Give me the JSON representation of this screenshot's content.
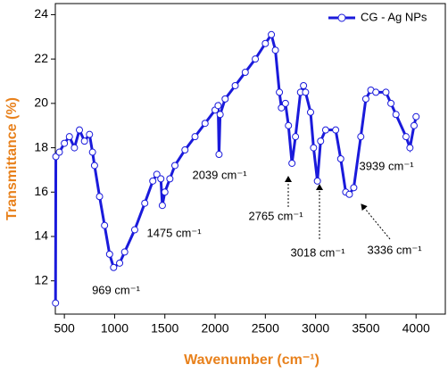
{
  "chart_data": {
    "type": "line",
    "x_label": "Wavenumber (cm⁻¹)",
    "y_label": "Transmittance (%)",
    "xlim": [
      410,
      4300
    ],
    "ylim": [
      10.5,
      24.5
    ],
    "xticks": [
      500,
      1000,
      1500,
      2000,
      2500,
      3000,
      3500,
      4000
    ],
    "yticks": [
      12,
      14,
      16,
      18,
      20,
      22,
      24
    ],
    "legend": "top-right",
    "x": [
      412,
      415,
      450,
      500,
      550,
      600,
      650,
      700,
      750,
      780,
      800,
      850,
      900,
      950,
      990,
      1050,
      1100,
      1200,
      1300,
      1380,
      1420,
      1460,
      1475,
      1500,
      1550,
      1600,
      1700,
      1800,
      1900,
      2000,
      2030,
      2039,
      2050,
      2100,
      2200,
      2300,
      2400,
      2500,
      2560,
      2600,
      2640,
      2660,
      2700,
      2730,
      2765,
      2800,
      2850,
      2880,
      2900,
      2950,
      2980,
      3018,
      3050,
      3100,
      3200,
      3250,
      3300,
      3336,
      3380,
      3450,
      3500,
      3550,
      3600,
      3700,
      3750,
      3800,
      3900,
      3939,
      3980,
      4000
    ],
    "series": [
      {
        "name": "CG - Ag NPs",
        "color": "#1a1adb",
        "values": [
          11.0,
          17.6,
          17.8,
          18.2,
          18.5,
          18.0,
          18.8,
          18.3,
          18.6,
          17.8,
          17.2,
          15.8,
          14.5,
          13.2,
          12.6,
          12.8,
          13.3,
          14.3,
          15.5,
          16.5,
          16.8,
          16.6,
          15.4,
          16.0,
          16.6,
          17.2,
          17.9,
          18.5,
          19.1,
          19.7,
          19.9,
          17.7,
          19.5,
          20.2,
          20.8,
          21.4,
          22.0,
          22.7,
          23.1,
          22.4,
          20.5,
          19.8,
          20.0,
          19.0,
          17.3,
          18.5,
          20.5,
          20.8,
          20.5,
          19.6,
          18.0,
          16.5,
          18.3,
          18.8,
          18.8,
          17.5,
          16.0,
          15.9,
          16.2,
          18.5,
          20.2,
          20.6,
          20.5,
          20.5,
          20.0,
          19.5,
          18.5,
          18.0,
          19.0,
          19.4
        ]
      }
    ],
    "annotations": [
      "969 cm⁻¹",
      "1475 cm⁻¹",
      "2039 cm⁻¹",
      "2765 cm⁻¹",
      "3018 cm⁻¹",
      "3336 cm⁻¹",
      "3939 cm⁻¹"
    ]
  }
}
